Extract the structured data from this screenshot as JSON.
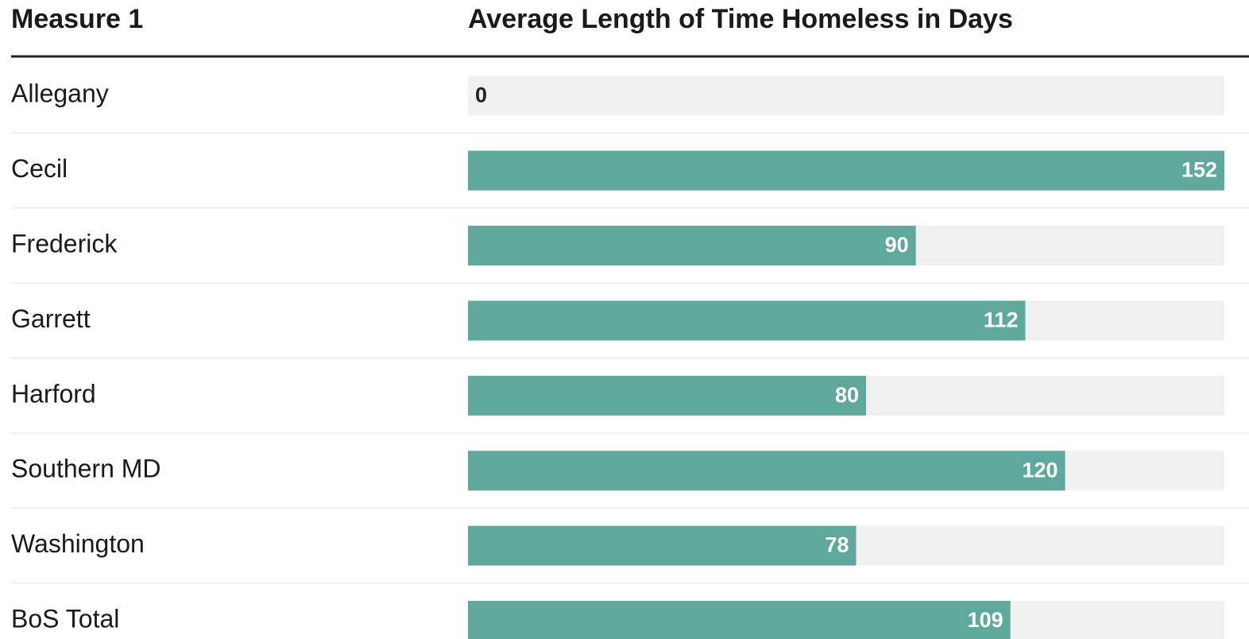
{
  "chart_data": {
    "type": "bar",
    "orientation": "horizontal",
    "columns": [
      "Measure 1",
      "Average Length of Time Homeless in Days"
    ],
    "categories": [
      "Allegany",
      "Cecil",
      "Frederick",
      "Garrett",
      "Harford",
      "Southern MD",
      "Washington",
      "BoS Total"
    ],
    "values": [
      0,
      152,
      90,
      112,
      80,
      120,
      78,
      109
    ],
    "color": "#5fa89c",
    "track_color": "#f0f0f0"
  }
}
